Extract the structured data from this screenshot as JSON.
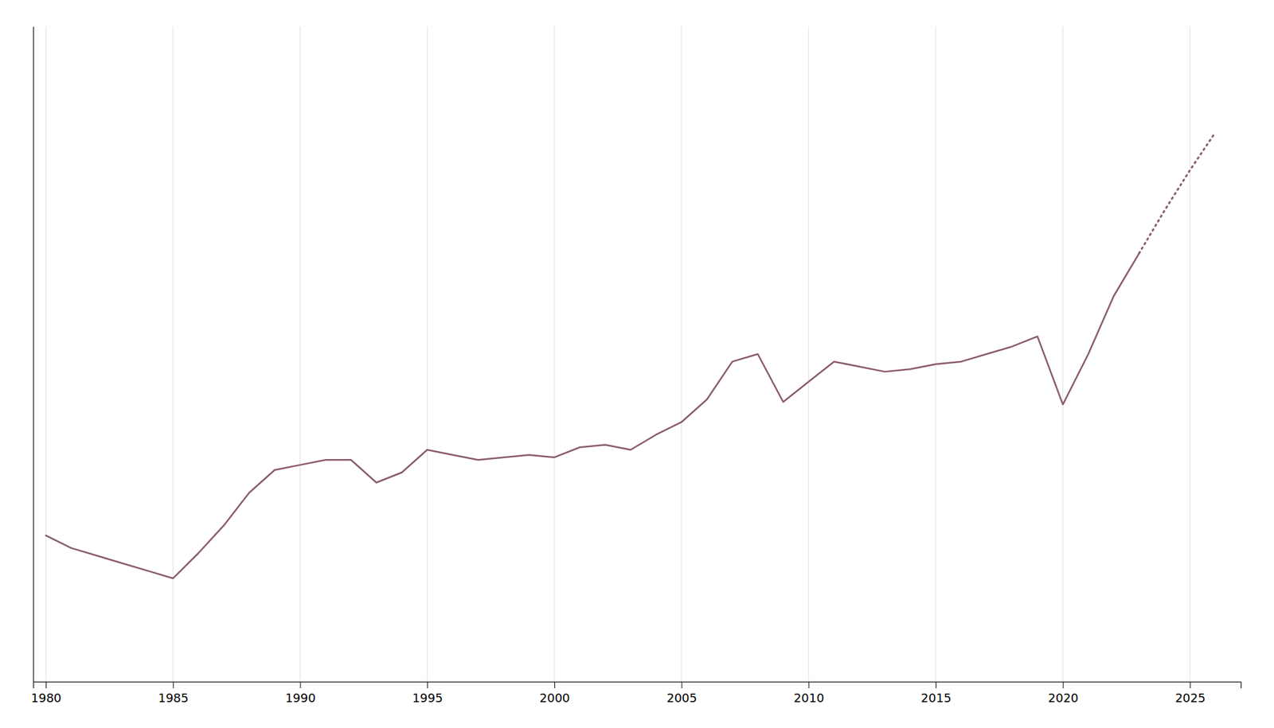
{
  "chart_data": {
    "type": "line",
    "series": [
      {
        "x": [
          1980,
          1981,
          1982,
          1983,
          1984,
          1985,
          1986,
          1987,
          1988,
          1989,
          1990,
          1991,
          1992,
          1993,
          1994,
          1995,
          1996,
          1997,
          1998,
          1999,
          2000,
          2001,
          2002,
          2003,
          2004,
          2005,
          2006,
          2007,
          2008,
          2009,
          2010,
          2011,
          2012,
          2013,
          2014,
          2015,
          2016,
          2017,
          2018,
          2019,
          2020,
          2021,
          2022,
          2023
        ],
        "values": [
          1.38,
          1.33,
          1.3,
          1.27,
          1.24,
          1.21,
          1.31,
          1.42,
          1.55,
          1.64,
          1.66,
          1.68,
          1.68,
          1.59,
          1.63,
          1.72,
          1.7,
          1.68,
          1.69,
          1.7,
          1.69,
          1.73,
          1.74,
          1.72,
          1.78,
          1.83,
          1.92,
          2.07,
          2.1,
          1.91,
          1.99,
          2.07,
          2.05,
          2.03,
          2.04,
          2.06,
          2.07,
          2.1,
          2.13,
          2.17,
          1.9,
          2.1,
          2.33,
          2.5
        ],
        "color": "#8b5a6e",
        "line_style": "solid"
      },
      {
        "x": [
          2023,
          2024,
          2025,
          2026
        ],
        "values": [
          2.5,
          2.67,
          2.83,
          2.98
        ],
        "color": "#8b5a6e",
        "line_style": "dotted"
      }
    ],
    "xlim": [
      1979.5,
      2027
    ],
    "ylim": [
      0.8,
      3.4
    ],
    "xticks": [
      1980,
      1985,
      1990,
      1995,
      2000,
      2005,
      2010,
      2015,
      2020,
      2025
    ],
    "grid": true,
    "tick_labels": "x"
  }
}
